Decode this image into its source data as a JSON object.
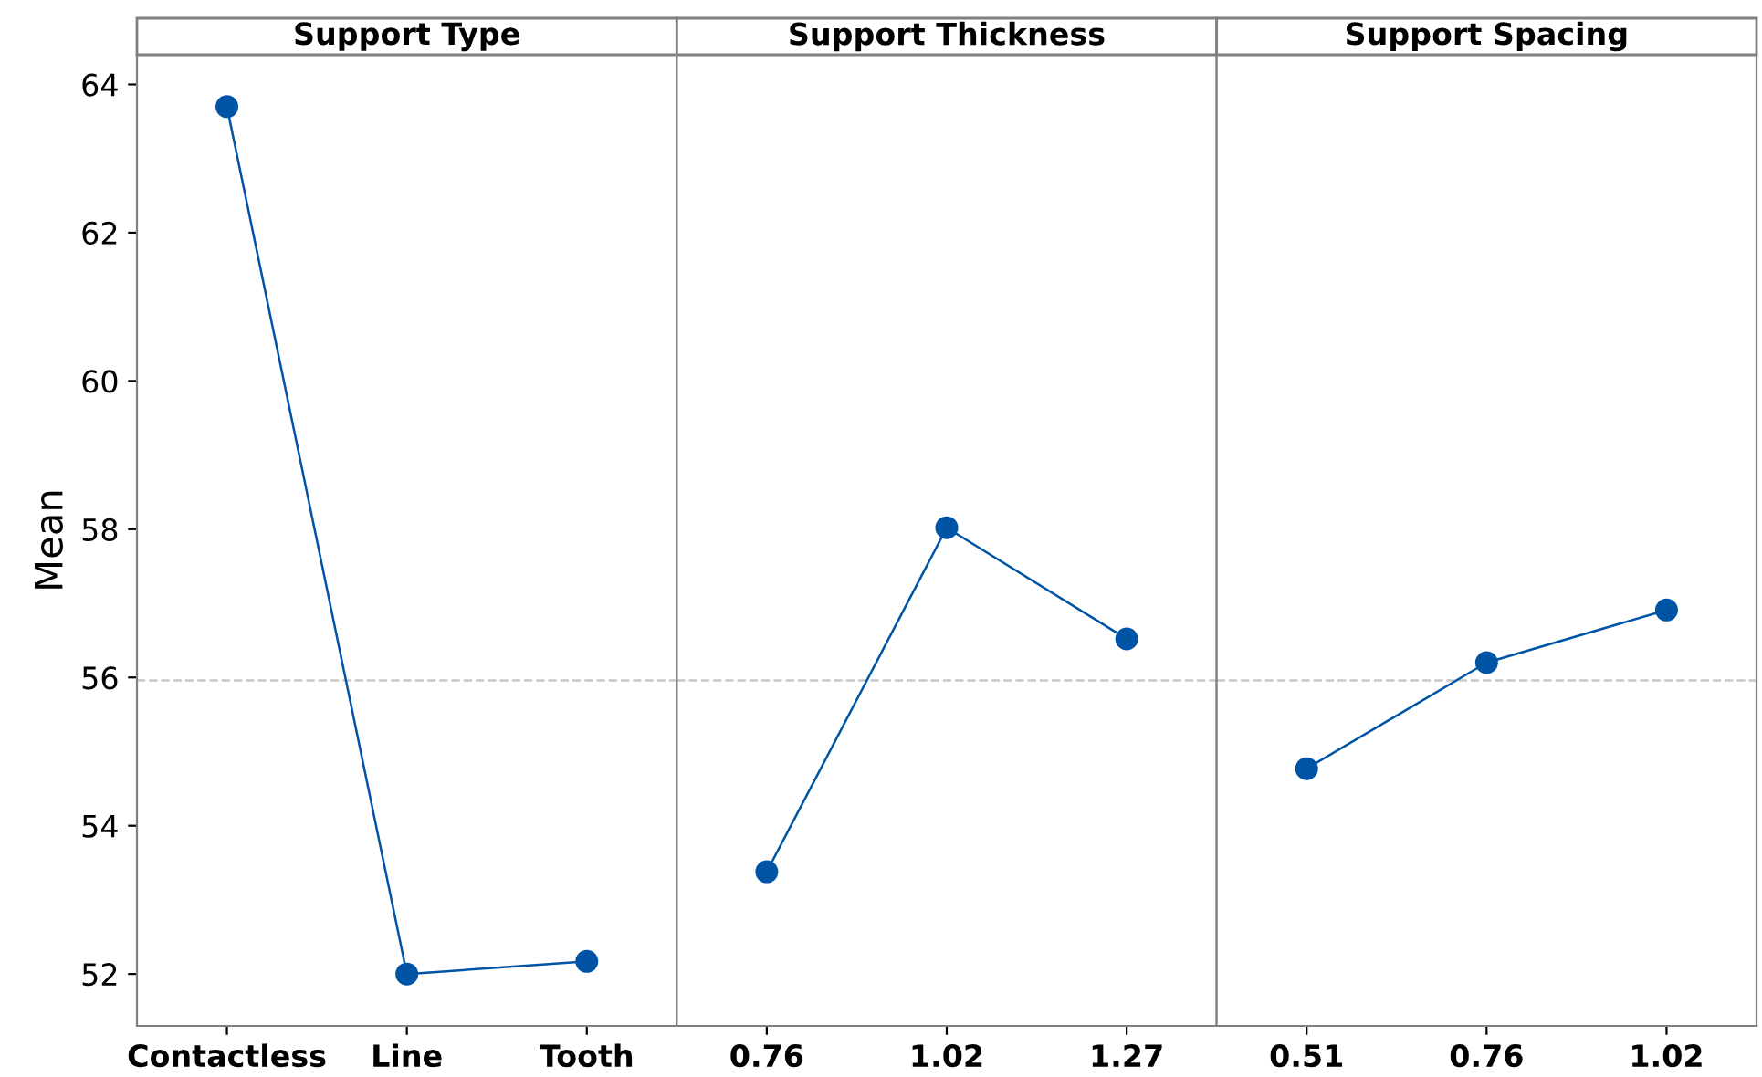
{
  "chart_data": [
    {
      "type": "line",
      "title": "Support Type",
      "ylabel": "Mean",
      "categories": [
        "Contactless",
        "Line",
        "Tooth"
      ],
      "series": [
        {
          "color": "#0054a6",
          "values": [
            63.7,
            52.0,
            52.17
          ]
        }
      ],
      "ylim": [
        51.3,
        64.4
      ],
      "yticks": [
        52,
        54,
        56,
        58,
        60,
        62,
        64
      ],
      "marker": "circle",
      "grid": false,
      "ref_lines": [
        {
          "axis": "y",
          "value": 55.96,
          "color": "#c8c8c8",
          "line_style": "dashed"
        }
      ]
    },
    {
      "type": "line",
      "title": "Support Thickness",
      "categories": [
        "0.76",
        "1.02",
        "1.27"
      ],
      "series": [
        {
          "color": "#0054a6",
          "values": [
            53.38,
            58.02,
            56.52
          ]
        }
      ],
      "ylim": [
        51.3,
        64.4
      ],
      "yticks": [
        52,
        54,
        56,
        58,
        60,
        62,
        64
      ],
      "tick_labels": "x",
      "marker": "circle",
      "grid": false,
      "ref_lines": [
        {
          "axis": "y",
          "value": 55.96,
          "color": "#c8c8c8",
          "line_style": "dashed"
        }
      ]
    },
    {
      "type": "line",
      "title": "Support Spacing",
      "categories": [
        "0.51",
        "0.76",
        "1.02"
      ],
      "series": [
        {
          "color": "#0054a6",
          "values": [
            54.77,
            56.2,
            56.91
          ]
        }
      ],
      "ylim": [
        51.3,
        64.4
      ],
      "yticks": [
        52,
        54,
        56,
        58,
        60,
        62,
        64
      ],
      "tick_labels": "x",
      "marker": "circle",
      "grid": false,
      "ref_lines": [
        {
          "axis": "y",
          "value": 55.96,
          "color": "#c8c8c8",
          "line_style": "dashed"
        }
      ]
    }
  ]
}
